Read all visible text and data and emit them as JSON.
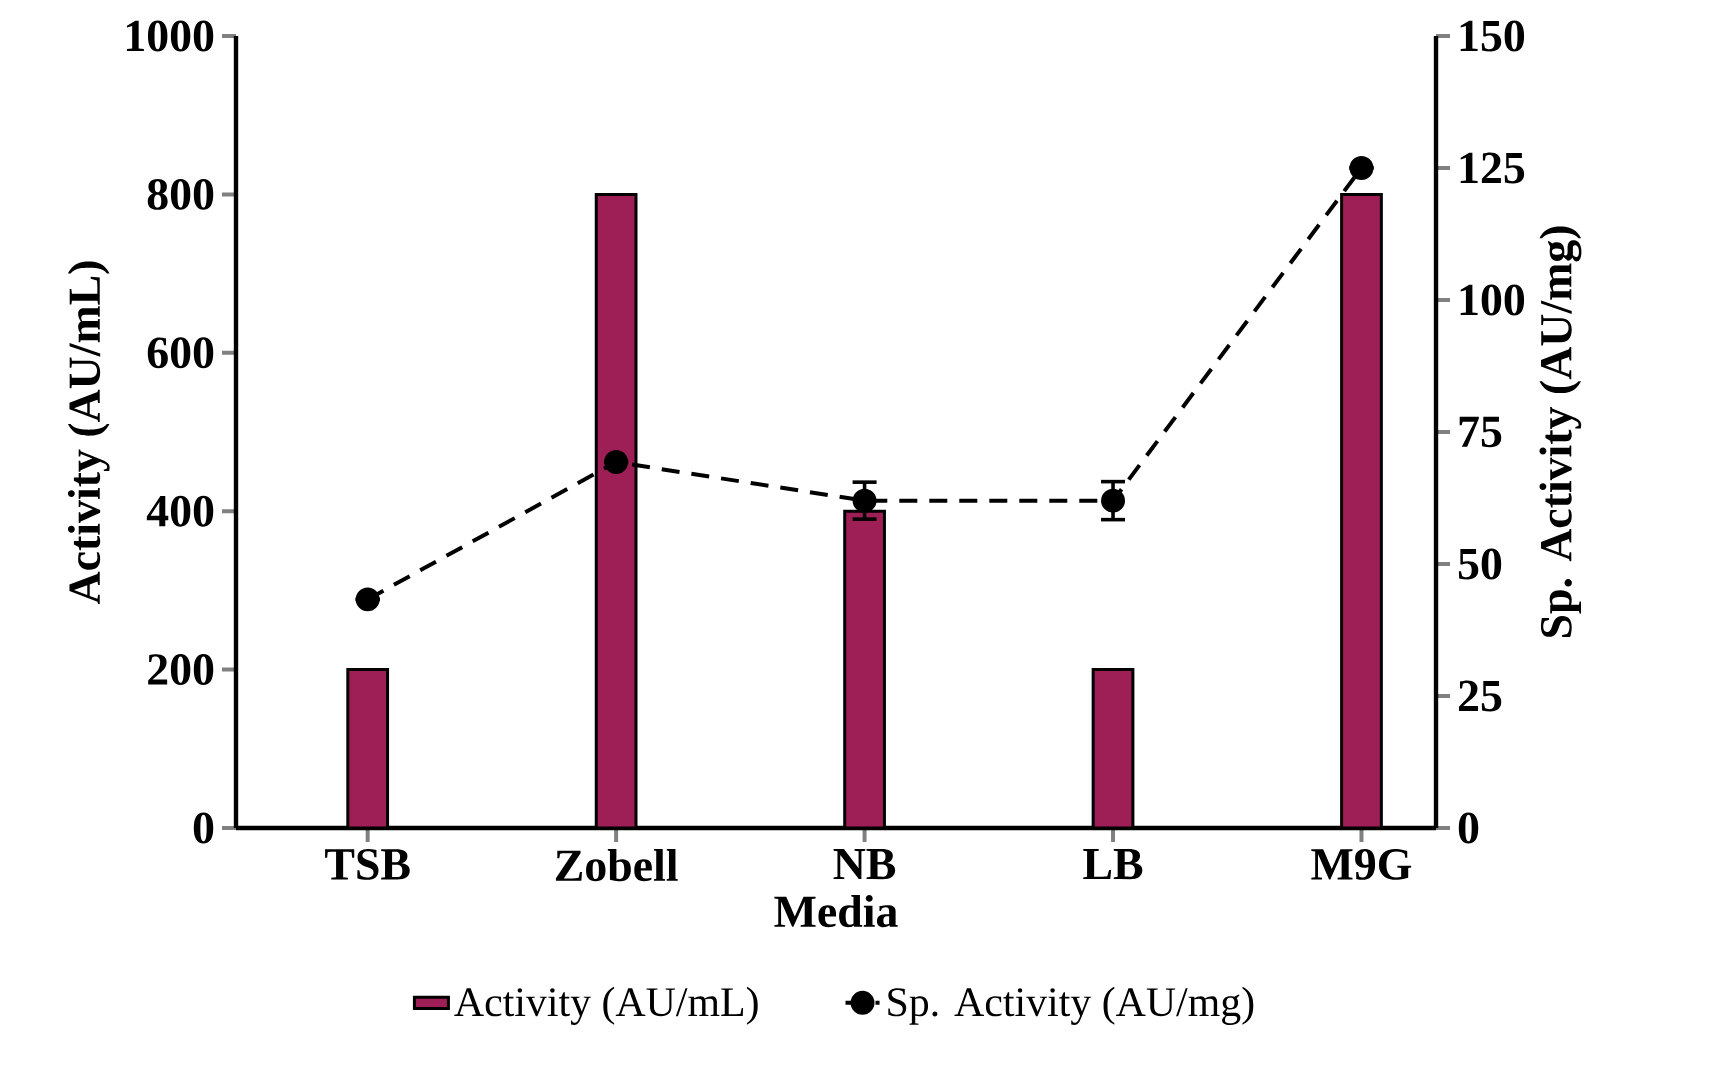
{
  "chart_data": {
    "type": "bar",
    "xlabel": "Media",
    "ylabel": "Activity (AU/mL)",
    "y2label": "Sp. Activity (AU/mg)",
    "categories": [
      "TSB",
      "Zobell",
      "NB",
      "LB",
      "M9G"
    ],
    "series": [
      {
        "name": "Activity (AU/mL)",
        "color": "#9e1f55",
        "values": [
          200,
          800,
          400,
          200,
          800
        ]
      },
      {
        "name": "Sp. Activity (AU/mg)",
        "type": "line",
        "axis": "y2",
        "color": "#000000",
        "marker": "circle",
        "line_style": "dashed",
        "values": [
          43.3,
          69.3,
          62,
          62,
          125
        ],
        "errors": [
          null,
          null,
          3.5,
          3.6,
          null
        ]
      }
    ],
    "ylim": [
      0,
      1000
    ],
    "yticks": [
      0,
      200,
      400,
      600,
      800,
      1000
    ],
    "y2lim": [
      0,
      150
    ],
    "y2ticks": [
      0,
      25,
      50,
      75,
      100,
      125,
      150
    ],
    "grid": false,
    "legend": "bottom"
  }
}
